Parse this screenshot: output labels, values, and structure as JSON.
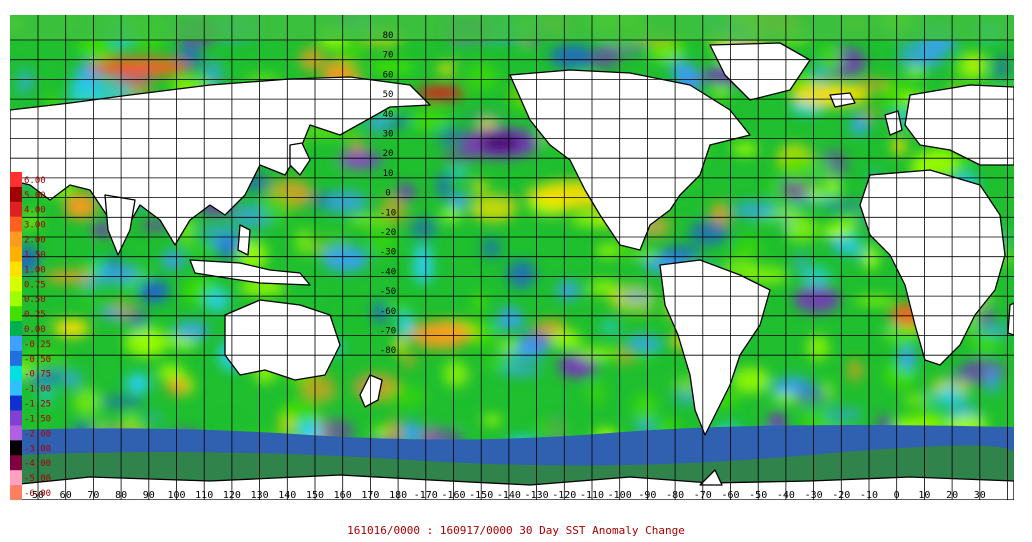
{
  "caption": "161016/0000 : 160917/0000 30 Day SST Anomaly Change",
  "map": {
    "lon_labels": [
      "50",
      "60",
      "70",
      "80",
      "90",
      "100",
      "110",
      "120",
      "130",
      "140",
      "150",
      "160",
      "170",
      "180",
      "-170",
      "-160",
      "-150",
      "-140",
      "-130",
      "-120",
      "-110",
      "-100",
      "-90",
      "-80",
      "-70",
      "-60",
      "-50",
      "-40",
      "-30",
      "-20",
      "-10",
      "0",
      "10",
      "20",
      "30"
    ],
    "lat_labels": [
      "80",
      "70",
      "60",
      "50",
      "40",
      "30",
      "20",
      "10",
      "0",
      "-10",
      "-20",
      "-30",
      "-40",
      "-50",
      "-60",
      "-70",
      "-80"
    ]
  },
  "legend": {
    "items": [
      {
        "label": "6.00",
        "color": "#ff3030"
      },
      {
        "label": "5.00",
        "color": "#a00000"
      },
      {
        "label": "4.00",
        "color": "#e02020"
      },
      {
        "label": "3.00",
        "color": "#ff6020"
      },
      {
        "label": "2.00",
        "color": "#ff9a20"
      },
      {
        "label": "1.50",
        "color": "#ffb000"
      },
      {
        "label": "1.00",
        "color": "#ffe000"
      },
      {
        "label": "0.75",
        "color": "#d8ff00"
      },
      {
        "label": "0.50",
        "color": "#a0ff00"
      },
      {
        "label": "0.25",
        "color": "#40e000"
      },
      {
        "label": "0.00",
        "color": "#00b050"
      },
      {
        "label": "-0.25",
        "color": "#40a0ff"
      },
      {
        "label": "-0.50",
        "color": "#2070e0"
      },
      {
        "label": "-0.75",
        "color": "#00e0e0"
      },
      {
        "label": "-1.00",
        "color": "#30c0ff"
      },
      {
        "label": "-1.25",
        "color": "#1030d0"
      },
      {
        "label": "-1.50",
        "color": "#8040d0"
      },
      {
        "label": "-2.00",
        "color": "#b060e0"
      },
      {
        "label": "-3.00",
        "color": "#000000"
      },
      {
        "label": "-4.00",
        "color": "#800040"
      },
      {
        "label": "-5.00",
        "color": "#ffa0c0"
      },
      {
        "label": "-6.00",
        "color": "#ff8060"
      }
    ]
  },
  "colors": {
    "ocean_base": "#1fbf2f",
    "land": "#ffffff",
    "coast": "#000000",
    "ice": "#3060b0",
    "arctic": "#40c040"
  }
}
